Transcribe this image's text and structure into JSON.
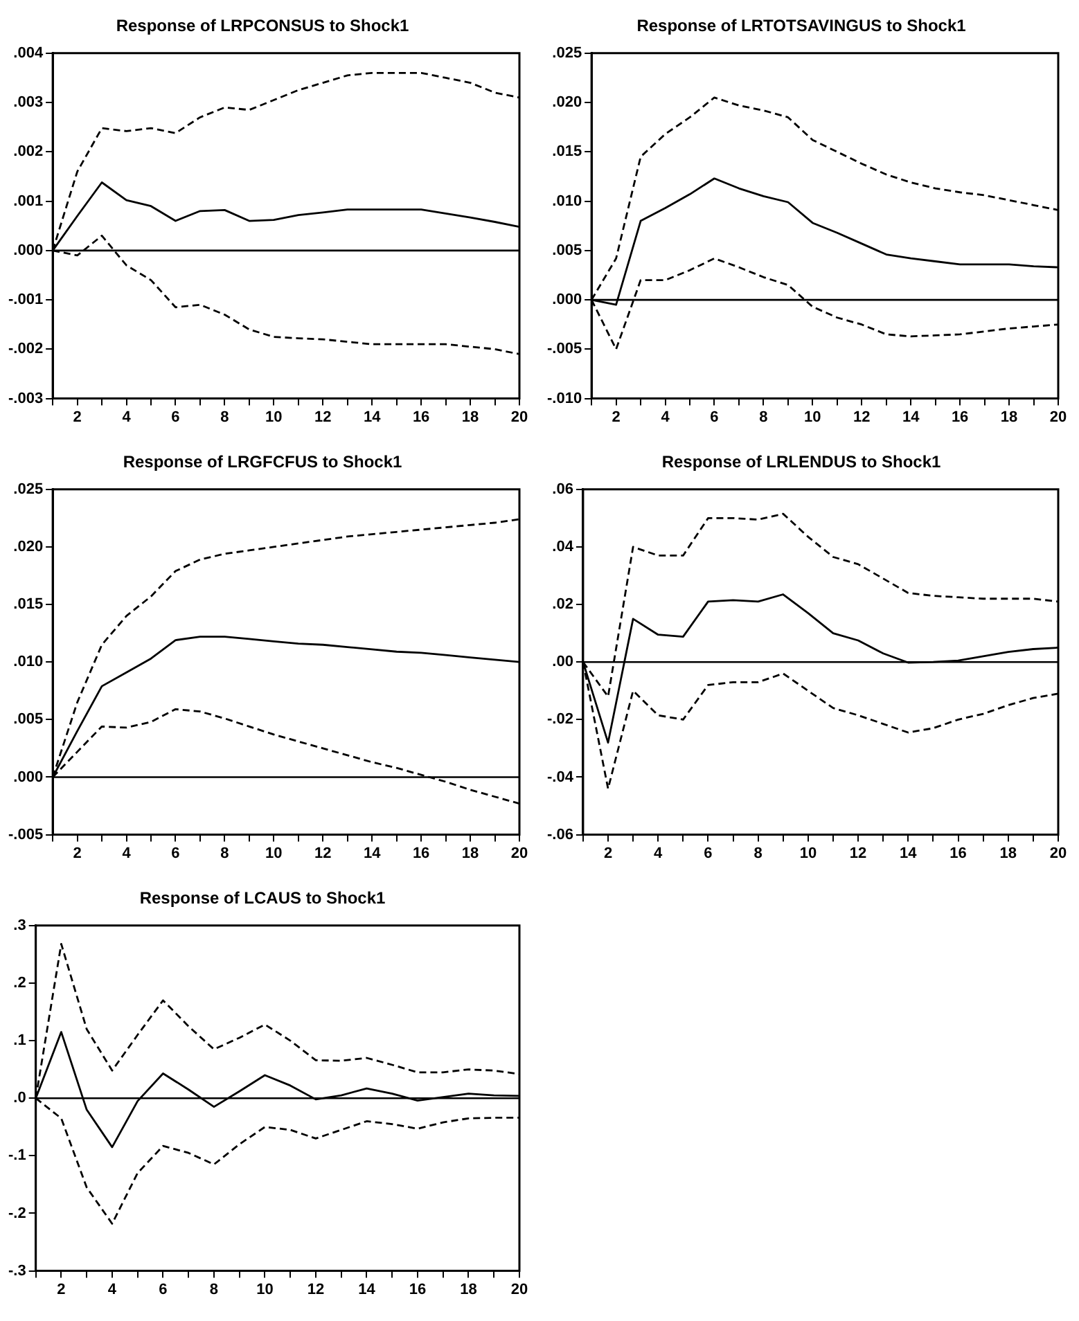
{
  "chart_data": [
    {
      "type": "line",
      "title": "Response of LRPCONSUS to Shock1",
      "x": [
        1,
        2,
        3,
        4,
        5,
        6,
        7,
        8,
        9,
        10,
        11,
        12,
        13,
        14,
        15,
        16,
        17,
        18,
        19,
        20
      ],
      "xlim": [
        1,
        20
      ],
      "xticks": [
        {
          "value": 1,
          "label": null
        },
        2,
        {
          "value": 3,
          "label": null
        },
        4,
        {
          "value": 5,
          "label": null
        },
        6,
        {
          "value": 7,
          "label": null
        },
        8,
        {
          "value": 9,
          "label": null
        },
        10,
        {
          "value": 11,
          "label": null
        },
        12,
        {
          "value": 13,
          "label": null
        },
        14,
        {
          "value": 15,
          "label": null
        },
        16,
        {
          "value": 17,
          "label": null
        },
        18,
        {
          "value": 19,
          "label": null
        },
        20
      ],
      "ylim": [
        -0.003,
        0.004
      ],
      "yticks": [
        {
          "value": -0.003,
          "label": "-.003"
        },
        {
          "value": -0.002,
          "label": "-.002"
        },
        {
          "value": -0.001,
          "label": "-.001"
        },
        {
          "value": 0,
          "label": ".000"
        },
        {
          "value": 0.001,
          "label": ".001"
        },
        {
          "value": 0.002,
          "label": ".002"
        },
        {
          "value": 0.003,
          "label": ".003"
        },
        {
          "value": 0.004,
          "label": ".004"
        }
      ],
      "grid": false,
      "legend": false,
      "marker": "none",
      "ref_lines": [
        {
          "axis": "y",
          "value": 0,
          "color": "#000000",
          "line_style": "solid"
        }
      ],
      "series": [
        {
          "color": "#000000",
          "line_style": "solid",
          "values": [
            0,
            0.0007,
            0.00138,
            0.00102,
            0.0009,
            0.0006,
            0.0008,
            0.00082,
            0.0006,
            0.00062,
            0.00072,
            0.00077,
            0.00083,
            0.00083,
            0.00083,
            0.00083,
            0.00075,
            0.00067,
            0.00058,
            0.00048
          ]
        },
        {
          "color": "#000000",
          "line_style": "dashed",
          "values": [
            0,
            0.0016,
            0.00248,
            0.00242,
            0.00248,
            0.00238,
            0.0027,
            0.0029,
            0.00285,
            0.00305,
            0.00325,
            0.0034,
            0.00355,
            0.0036,
            0.0036,
            0.0036,
            0.0035,
            0.0034,
            0.0032,
            0.0031
          ]
        },
        {
          "color": "#000000",
          "line_style": "dashed",
          "values": [
            0,
            -0.0001,
            0.0003,
            -0.0003,
            -0.0006,
            -0.00115,
            -0.0011,
            -0.0013,
            -0.0016,
            -0.00175,
            -0.00178,
            -0.0018,
            -0.00185,
            -0.0019,
            -0.0019,
            -0.0019,
            -0.0019,
            -0.00195,
            -0.002,
            -0.0021
          ]
        }
      ]
    },
    {
      "type": "line",
      "title": "Response of LRTOTSAVINGUS to Shock1",
      "x": [
        1,
        2,
        3,
        4,
        5,
        6,
        7,
        8,
        9,
        10,
        11,
        12,
        13,
        14,
        15,
        16,
        17,
        18,
        19,
        20
      ],
      "xlim": [
        1,
        20
      ],
      "xticks": [
        {
          "value": 1,
          "label": null
        },
        2,
        {
          "value": 3,
          "label": null
        },
        4,
        {
          "value": 5,
          "label": null
        },
        6,
        {
          "value": 7,
          "label": null
        },
        8,
        {
          "value": 9,
          "label": null
        },
        10,
        {
          "value": 11,
          "label": null
        },
        12,
        {
          "value": 13,
          "label": null
        },
        14,
        {
          "value": 15,
          "label": null
        },
        16,
        {
          "value": 17,
          "label": null
        },
        18,
        {
          "value": 19,
          "label": null
        },
        20
      ],
      "ylim": [
        -0.01,
        0.025
      ],
      "yticks": [
        {
          "value": -0.01,
          "label": "-.010"
        },
        {
          "value": -0.005,
          "label": "-.005"
        },
        {
          "value": 0,
          "label": ".000"
        },
        {
          "value": 0.005,
          "label": ".005"
        },
        {
          "value": 0.01,
          "label": ".010"
        },
        {
          "value": 0.015,
          "label": ".015"
        },
        {
          "value": 0.02,
          "label": ".020"
        },
        {
          "value": 0.025,
          "label": ".025"
        }
      ],
      "grid": false,
      "legend": false,
      "marker": "none",
      "ref_lines": [
        {
          "axis": "y",
          "value": 0,
          "color": "#000000",
          "line_style": "solid"
        }
      ],
      "series": [
        {
          "color": "#000000",
          "line_style": "solid",
          "values": [
            0,
            -0.0005,
            0.008,
            0.0093,
            0.0107,
            0.0123,
            0.0113,
            0.0105,
            0.0099,
            0.0078,
            0.0068,
            0.0057,
            0.0046,
            0.0042,
            0.0039,
            0.0036,
            0.0036,
            0.0036,
            0.0034,
            0.0033
          ]
        },
        {
          "color": "#000000",
          "line_style": "dashed",
          "values": [
            0,
            0.0042,
            0.0145,
            0.0168,
            0.0185,
            0.0205,
            0.0197,
            0.0192,
            0.0185,
            0.0162,
            0.015,
            0.0138,
            0.0127,
            0.0119,
            0.0113,
            0.0109,
            0.0106,
            0.0101,
            0.0096,
            0.0091
          ]
        },
        {
          "color": "#000000",
          "line_style": "dashed",
          "values": [
            0,
            -0.005,
            0.002,
            0.002,
            0.003,
            0.0042,
            0.0033,
            0.0023,
            0.0015,
            -0.0007,
            -0.0018,
            -0.0025,
            -0.0035,
            -0.0037,
            -0.0036,
            -0.0035,
            -0.0032,
            -0.0029,
            -0.0027,
            -0.0025
          ]
        }
      ]
    },
    {
      "type": "line",
      "title": "Response of LRGFCFUS to Shock1",
      "x": [
        1,
        2,
        3,
        4,
        5,
        6,
        7,
        8,
        9,
        10,
        11,
        12,
        13,
        14,
        15,
        16,
        17,
        18,
        19,
        20
      ],
      "xlim": [
        1,
        20
      ],
      "xticks": [
        {
          "value": 1,
          "label": null
        },
        2,
        {
          "value": 3,
          "label": null
        },
        4,
        {
          "value": 5,
          "label": null
        },
        6,
        {
          "value": 7,
          "label": null
        },
        8,
        {
          "value": 9,
          "label": null
        },
        10,
        {
          "value": 11,
          "label": null
        },
        12,
        {
          "value": 13,
          "label": null
        },
        14,
        {
          "value": 15,
          "label": null
        },
        16,
        {
          "value": 17,
          "label": null
        },
        18,
        {
          "value": 19,
          "label": null
        },
        20
      ],
      "ylim": [
        -0.005,
        0.025
      ],
      "yticks": [
        {
          "value": -0.005,
          "label": "-.005"
        },
        {
          "value": 0,
          "label": ".000"
        },
        {
          "value": 0.005,
          "label": ".005"
        },
        {
          "value": 0.01,
          "label": ".010"
        },
        {
          "value": 0.015,
          "label": ".015"
        },
        {
          "value": 0.02,
          "label": ".020"
        },
        {
          "value": 0.025,
          "label": ".025"
        }
      ],
      "grid": false,
      "legend": false,
      "marker": "none",
      "ref_lines": [
        {
          "axis": "y",
          "value": 0,
          "color": "#000000",
          "line_style": "solid"
        }
      ],
      "series": [
        {
          "color": "#000000",
          "line_style": "solid",
          "values": [
            0,
            0.004,
            0.0079,
            0.0091,
            0.0103,
            0.0119,
            0.0122,
            0.0122,
            0.012,
            0.0118,
            0.0116,
            0.0115,
            0.0113,
            0.0111,
            0.0109,
            0.0108,
            0.0106,
            0.0104,
            0.0102,
            0.01
          ]
        },
        {
          "color": "#000000",
          "line_style": "dashed",
          "values": [
            0,
            0.0065,
            0.0115,
            0.014,
            0.0157,
            0.0179,
            0.0189,
            0.0194,
            0.0197,
            0.02,
            0.0203,
            0.0206,
            0.0209,
            0.0211,
            0.0213,
            0.0215,
            0.0217,
            0.0219,
            0.0221,
            0.0224
          ]
        },
        {
          "color": "#000000",
          "line_style": "dashed",
          "values": [
            0,
            0.0022,
            0.0044,
            0.0043,
            0.0048,
            0.0059,
            0.0057,
            0.0051,
            0.0044,
            0.0037,
            0.0031,
            0.0025,
            0.0019,
            0.0013,
            0.0008,
            0.0002,
            -0.0004,
            -0.0011,
            -0.0017,
            -0.0023
          ]
        }
      ]
    },
    {
      "type": "line",
      "title": "Response of LRLENDUS to Shock1",
      "x": [
        1,
        2,
        3,
        4,
        5,
        6,
        7,
        8,
        9,
        10,
        11,
        12,
        13,
        14,
        15,
        16,
        17,
        18,
        19,
        20
      ],
      "xlim": [
        1,
        20
      ],
      "xticks": [
        {
          "value": 1,
          "label": null
        },
        2,
        {
          "value": 3,
          "label": null
        },
        4,
        {
          "value": 5,
          "label": null
        },
        6,
        {
          "value": 7,
          "label": null
        },
        8,
        {
          "value": 9,
          "label": null
        },
        10,
        {
          "value": 11,
          "label": null
        },
        12,
        {
          "value": 13,
          "label": null
        },
        14,
        {
          "value": 15,
          "label": null
        },
        16,
        {
          "value": 17,
          "label": null
        },
        18,
        {
          "value": 19,
          "label": null
        },
        20
      ],
      "ylim": [
        -0.06,
        0.06
      ],
      "yticks": [
        {
          "value": -0.06,
          "label": "-.06"
        },
        {
          "value": -0.04,
          "label": "-.04"
        },
        {
          "value": -0.02,
          "label": "-.02"
        },
        {
          "value": 0,
          "label": ".00"
        },
        {
          "value": 0.02,
          "label": ".02"
        },
        {
          "value": 0.04,
          "label": ".04"
        },
        {
          "value": 0.06,
          "label": ".06"
        }
      ],
      "grid": false,
      "legend": false,
      "marker": "none",
      "ref_lines": [
        {
          "axis": "y",
          "value": 0,
          "color": "#000000",
          "line_style": "solid"
        }
      ],
      "series": [
        {
          "color": "#000000",
          "line_style": "solid",
          "values": [
            0,
            -0.028,
            0.015,
            0.0095,
            0.0088,
            0.021,
            0.0215,
            0.021,
            0.0235,
            0.017,
            0.01,
            0.0075,
            0.003,
            -0.0002,
            0,
            0.0005,
            0.002,
            0.0035,
            0.0045,
            0.005
          ]
        },
        {
          "color": "#000000",
          "line_style": "dashed",
          "values": [
            0,
            -0.012,
            0.04,
            0.037,
            0.037,
            0.05,
            0.05,
            0.0495,
            0.0515,
            0.0435,
            0.0365,
            0.034,
            0.029,
            0.024,
            0.023,
            0.0225,
            0.022,
            0.022,
            0.022,
            0.021
          ]
        },
        {
          "color": "#000000",
          "line_style": "dashed",
          "values": [
            0,
            -0.044,
            -0.01,
            -0.0185,
            -0.02,
            -0.008,
            -0.007,
            -0.007,
            -0.004,
            -0.01,
            -0.016,
            -0.0185,
            -0.0215,
            -0.0245,
            -0.023,
            -0.02,
            -0.018,
            -0.015,
            -0.0125,
            -0.011
          ]
        }
      ]
    },
    {
      "type": "line",
      "title": "Response of LCAUS to Shock1",
      "x": [
        1,
        2,
        3,
        4,
        5,
        6,
        7,
        8,
        9,
        10,
        11,
        12,
        13,
        14,
        15,
        16,
        17,
        18,
        19,
        20
      ],
      "xlim": [
        1,
        20
      ],
      "xticks": [
        {
          "value": 1,
          "label": null
        },
        2,
        {
          "value": 3,
          "label": null
        },
        4,
        {
          "value": 5,
          "label": null
        },
        6,
        {
          "value": 7,
          "label": null
        },
        8,
        {
          "value": 9,
          "label": null
        },
        10,
        {
          "value": 11,
          "label": null
        },
        12,
        {
          "value": 13,
          "label": null
        },
        14,
        {
          "value": 15,
          "label": null
        },
        16,
        {
          "value": 17,
          "label": null
        },
        18,
        {
          "value": 19,
          "label": null
        },
        20
      ],
      "ylim": [
        -0.3,
        0.3
      ],
      "yticks": [
        {
          "value": -0.3,
          "label": "-.3"
        },
        {
          "value": -0.2,
          "label": "-.2"
        },
        {
          "value": -0.1,
          "label": "-.1"
        },
        {
          "value": 0,
          "label": ".0"
        },
        {
          "value": 0.1,
          "label": ".1"
        },
        {
          "value": 0.2,
          "label": ".2"
        },
        {
          "value": 0.3,
          "label": ".3"
        }
      ],
      "grid": false,
      "legend": false,
      "marker": "none",
      "ref_lines": [
        {
          "axis": "y",
          "value": 0,
          "color": "#000000",
          "line_style": "solid"
        }
      ],
      "series": [
        {
          "color": "#000000",
          "line_style": "solid",
          "values": [
            0,
            0.115,
            -0.02,
            -0.085,
            -0.005,
            0.043,
            0.015,
            -0.015,
            0.012,
            0.04,
            0.022,
            -0.002,
            0.005,
            0.017,
            0.008,
            -0.004,
            0.002,
            0.008,
            0.005,
            0.004
          ]
        },
        {
          "color": "#000000",
          "line_style": "dashed",
          "values": [
            0,
            0.268,
            0.12,
            0.048,
            0.11,
            0.17,
            0.125,
            0.085,
            0.105,
            0.128,
            0.1,
            0.066,
            0.065,
            0.07,
            0.058,
            0.045,
            0.045,
            0.05,
            0.048,
            0.042
          ]
        },
        {
          "color": "#000000",
          "line_style": "dashed",
          "values": [
            0,
            -0.035,
            -0.155,
            -0.218,
            -0.13,
            -0.083,
            -0.095,
            -0.115,
            -0.08,
            -0.05,
            -0.055,
            -0.07,
            -0.055,
            -0.04,
            -0.045,
            -0.053,
            -0.042,
            -0.035,
            -0.034,
            -0.034
          ]
        }
      ]
    }
  ]
}
